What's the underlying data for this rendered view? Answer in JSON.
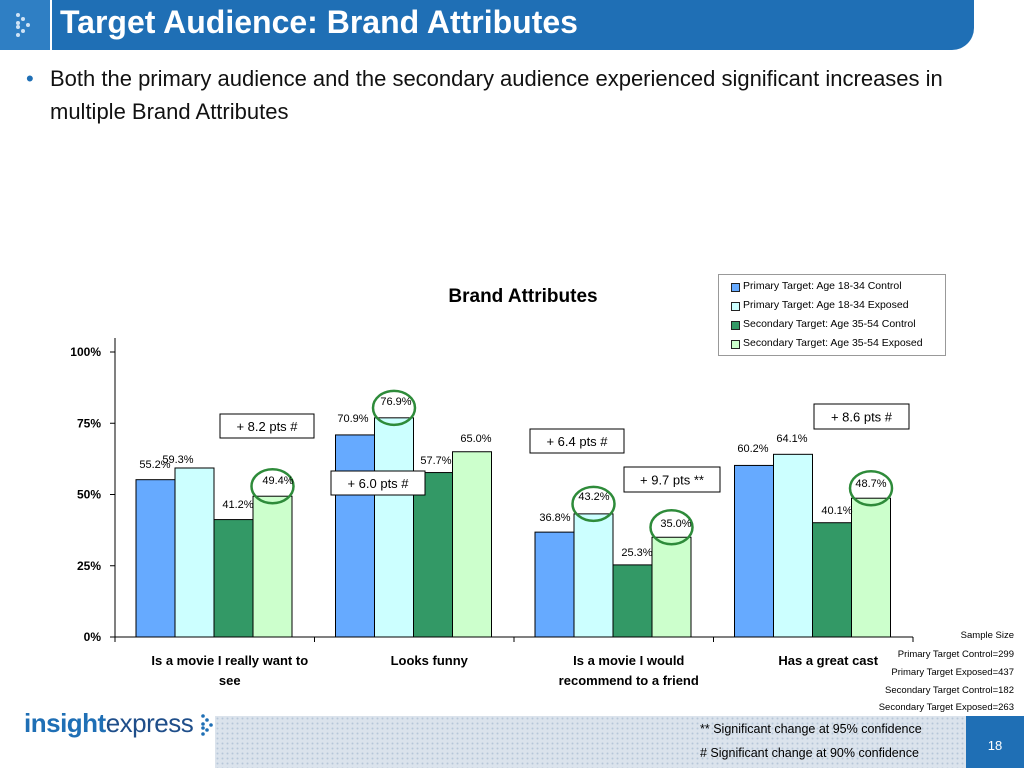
{
  "header": {
    "title": "Target Audience: Brand Attributes"
  },
  "bullet": {
    "text": "Both the primary audience and the secondary audience experienced significant increases in multiple Brand Attributes"
  },
  "chart_data": {
    "type": "bar",
    "title": "Brand Attributes",
    "categories": [
      [
        "Is a movie I really want to",
        "see"
      ],
      [
        "Looks funny"
      ],
      [
        "Is a movie I would",
        "recommend to a friend"
      ],
      [
        "Has a great cast"
      ]
    ],
    "series": [
      {
        "name": "Primary Target: Age 18-34 Control",
        "color": "#66aaff",
        "values": [
          55.2,
          70.9,
          36.8,
          60.2
        ],
        "labels": [
          "55.2%",
          "70.9%",
          "36.8%",
          "60.2%"
        ]
      },
      {
        "name": "Primary Target: Age 18-34 Exposed",
        "color": "#ccffff",
        "values": [
          59.3,
          76.9,
          43.2,
          64.1
        ],
        "labels": [
          "59.3%",
          "76.9%",
          "43.2%",
          "64.1%"
        ]
      },
      {
        "name": "Secondary Target: Age 35-54 Control",
        "color": "#339966",
        "values": [
          41.2,
          57.7,
          25.3,
          40.1
        ],
        "labels": [
          "41.2%",
          "57.7%",
          "25.3%",
          "40.1%"
        ]
      },
      {
        "name": "Secondary Target: Age 35-54 Exposed",
        "color": "#ccffcc",
        "values": [
          49.4,
          65.0,
          35.0,
          48.7
        ],
        "labels": [
          "49.4%",
          "65.0%",
          "35.0%",
          "48.7%"
        ]
      }
    ],
    "ylim": [
      0,
      100
    ],
    "yticks": [
      0,
      25,
      50,
      75,
      100
    ],
    "ytick_labels": [
      "0%",
      "25%",
      "50%",
      "75%",
      "100%"
    ],
    "grid": false,
    "legend_position": "top-right",
    "circled": [
      {
        "category": 0,
        "series": 3
      },
      {
        "category": 1,
        "series": 1
      },
      {
        "category": 2,
        "series": 1
      },
      {
        "category": 2,
        "series": 3
      },
      {
        "category": 3,
        "series": 3
      }
    ],
    "circle_color": "#2e8b3a",
    "annotations": [
      "+ 8.2 pts #",
      "+ 6.0 pts #",
      "+ 6.4 pts #",
      "+ 9.7 pts **",
      "+ 8.6 pts #"
    ]
  },
  "sample_size": {
    "title": "Sample Size",
    "lines": [
      "Primary Target Control=299",
      "Primary Target Exposed=437",
      "Secondary Target Control=182",
      "Secondary Target Exposed=263"
    ]
  },
  "footer": {
    "logo_part1": "insight",
    "logo_part2": "express",
    "note_95": "** Significant change at 95% confidence",
    "note_90": "# Significant change at 90% confidence",
    "page_number": "18"
  }
}
